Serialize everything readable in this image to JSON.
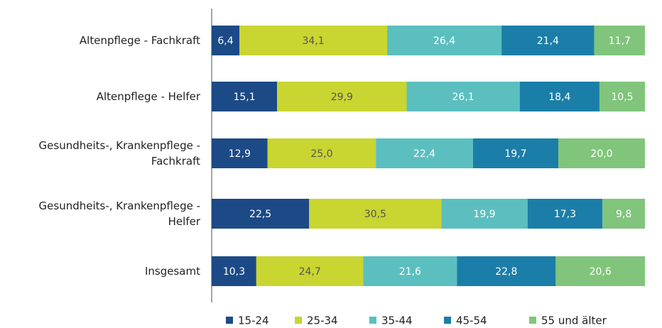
{
  "chart_data": {
    "type": "stacked-bar-horizontal",
    "categories": [
      "Altenpflege - Fachkraft",
      "Altenpflege - Helfer",
      "Gesundheits-, Krankenpflege -\nFachkraft",
      "Gesundheits-, Krankenpflege -\nHelfer",
      "Insgesamt"
    ],
    "xlim": [
      0,
      100
    ],
    "series": [
      {
        "name": "15-24",
        "color": "#1c4a86",
        "values": [
          6.4,
          15.1,
          12.9,
          22.5,
          10.3
        ],
        "value_labels": [
          "6,4",
          "15,1",
          "12,9",
          "22,5",
          "10,3"
        ]
      },
      {
        "name": "25-34",
        "color": "#c9d530",
        "values": [
          34.1,
          29.9,
          25.0,
          30.5,
          24.7
        ],
        "value_labels": [
          "34,1",
          "29,9",
          "25,0",
          "30,5",
          "24,7"
        ]
      },
      {
        "name": "35-44",
        "color": "#5bbfc0",
        "values": [
          26.4,
          26.1,
          22.4,
          19.9,
          21.6
        ],
        "value_labels": [
          "26,4",
          "26,1",
          "22,4",
          "19,9",
          "21,6"
        ]
      },
      {
        "name": "45-54",
        "color": "#1b7ea8",
        "values": [
          21.4,
          18.4,
          19.7,
          17.3,
          22.8
        ],
        "value_labels": [
          "21,4",
          "18,4",
          "19,7",
          "17,3",
          "22,8"
        ]
      },
      {
        "name": "55 und älter",
        "color": "#80c57b",
        "values": [
          11.7,
          10.5,
          20.0,
          9.8,
          20.6
        ],
        "value_labels": [
          "11,7",
          "10,5",
          "20,0",
          "9,8",
          "20,6"
        ]
      }
    ]
  }
}
